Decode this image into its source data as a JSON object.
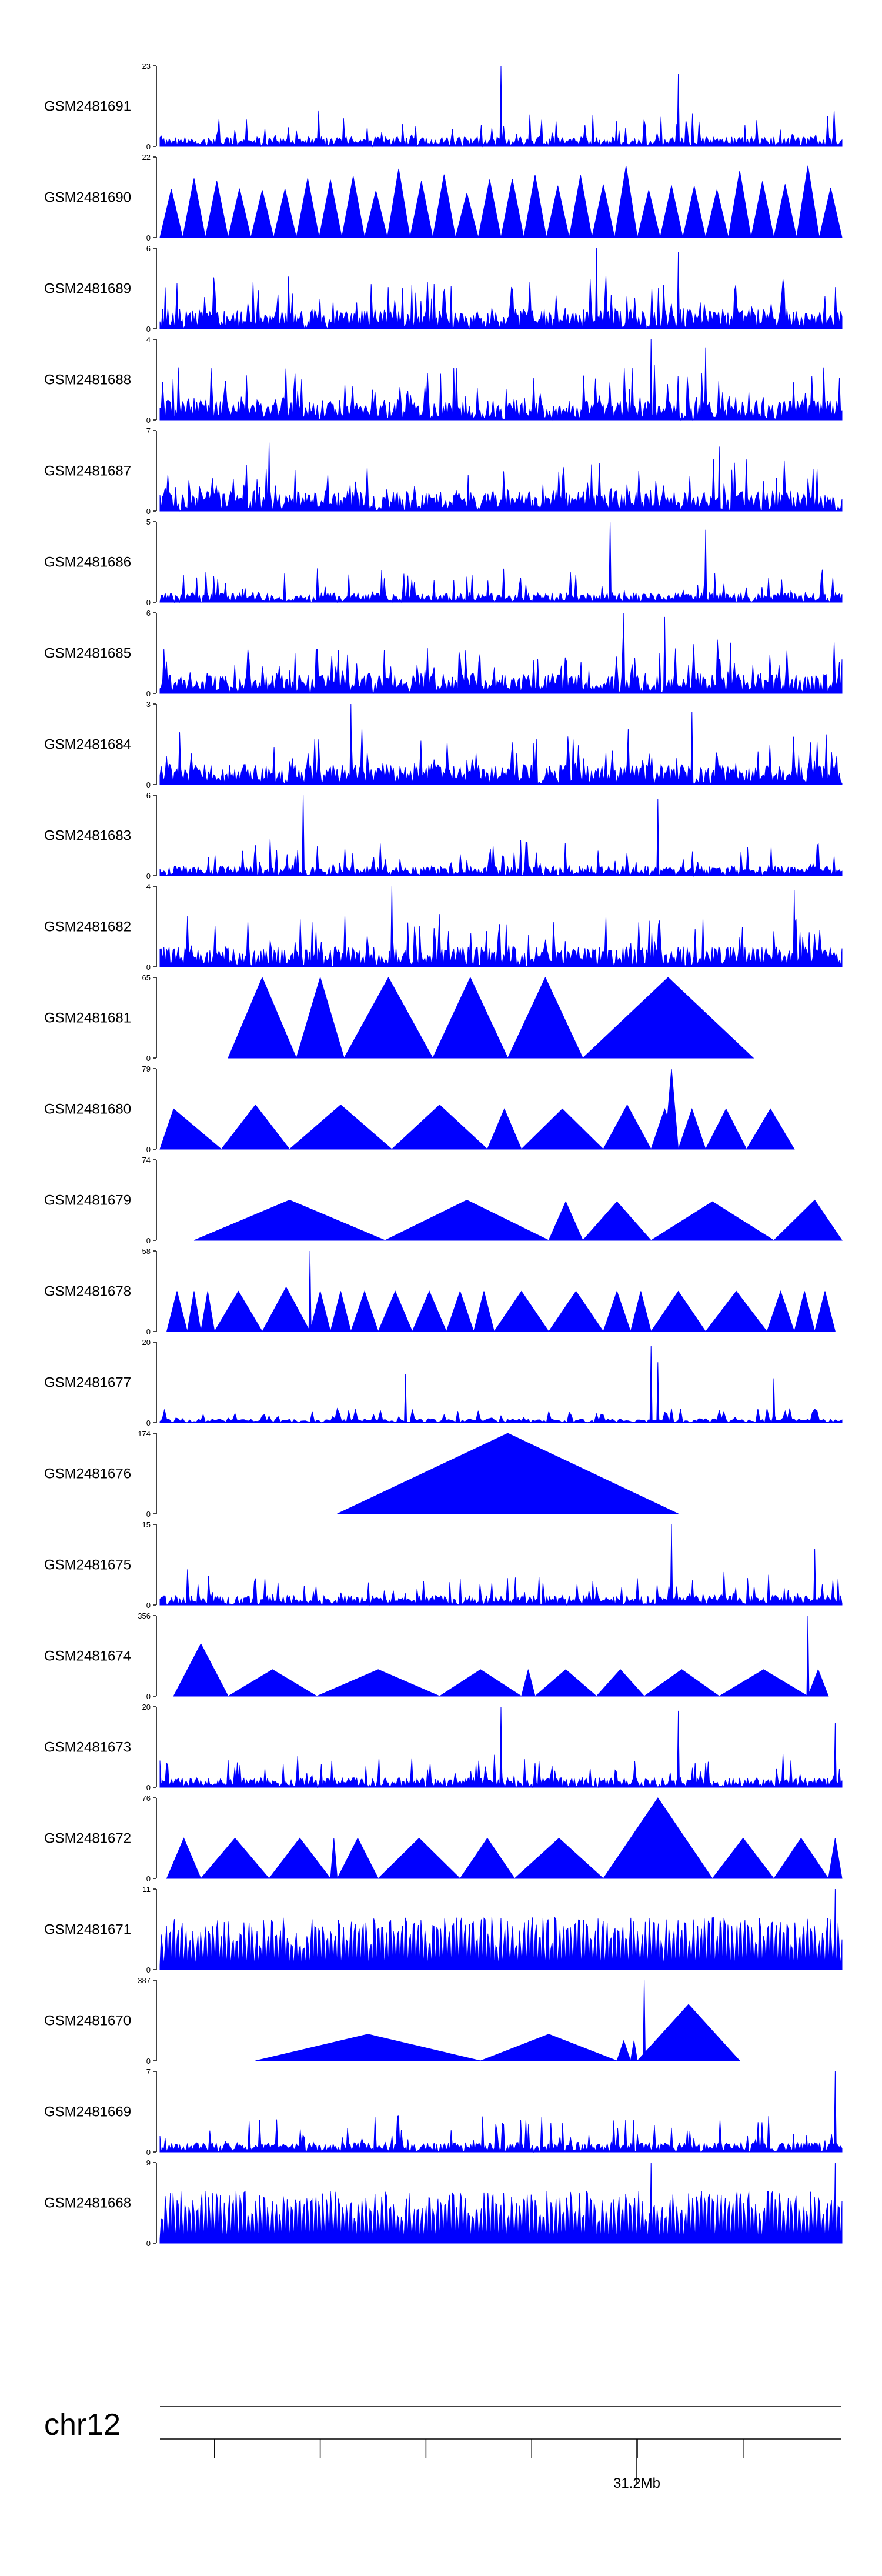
{
  "chart_data": {
    "type": "area",
    "title": "",
    "color": "#0000ff",
    "tracks": [
      {
        "name": "GSM2481691",
        "ymax": "23",
        "ymin": "0",
        "max": 23,
        "pattern": "spiky",
        "seed": 11,
        "peaks": [
          [
            0.5,
            1.0
          ],
          [
            0.76,
            0.9
          ]
        ]
      },
      {
        "name": "GSM2481690",
        "ymax": "22",
        "ymin": "0",
        "max": 22,
        "pattern": "sparse",
        "seed": 12,
        "peaks": []
      },
      {
        "name": "GSM2481689",
        "ymax": "6",
        "ymin": "0",
        "max": 6,
        "pattern": "dense",
        "seed": 13,
        "peaks": [
          [
            0.64,
            1.0
          ],
          [
            0.76,
            0.95
          ]
        ]
      },
      {
        "name": "GSM2481688",
        "ymax": "4",
        "ymin": "0",
        "max": 4,
        "pattern": "dense",
        "seed": 14,
        "peaks": [
          [
            0.72,
            1.0
          ],
          [
            0.8,
            0.9
          ]
        ]
      },
      {
        "name": "GSM2481687",
        "ymax": "7",
        "ymin": "0",
        "max": 7,
        "pattern": "dense",
        "seed": 15,
        "peaks": [
          [
            0.16,
            0.85
          ],
          [
            0.82,
            0.8
          ]
        ]
      },
      {
        "name": "GSM2481686",
        "ymax": "5",
        "ymin": "0",
        "max": 5,
        "pattern": "spiky",
        "seed": 16,
        "peaks": [
          [
            0.66,
            1.0
          ],
          [
            0.8,
            0.9
          ]
        ]
      },
      {
        "name": "GSM2481685",
        "ymax": "6",
        "ymin": "0",
        "max": 6,
        "pattern": "dense",
        "seed": 17,
        "peaks": [
          [
            0.68,
            1.0
          ],
          [
            0.74,
            0.95
          ]
        ]
      },
      {
        "name": "GSM2481684",
        "ymax": "3",
        "ymin": "0",
        "max": 3,
        "pattern": "dense",
        "seed": 18,
        "peaks": [
          [
            0.28,
            1.0
          ],
          [
            0.78,
            0.9
          ]
        ]
      },
      {
        "name": "GSM2481683",
        "ymax": "6",
        "ymin": "0",
        "max": 6,
        "pattern": "spiky",
        "seed": 19,
        "peaks": [
          [
            0.21,
            1.0
          ],
          [
            0.73,
            0.95
          ]
        ]
      },
      {
        "name": "GSM2481682",
        "ymax": "4",
        "ymin": "0",
        "max": 4,
        "pattern": "dense",
        "seed": 20,
        "peaks": [
          [
            0.34,
            1.0
          ],
          [
            0.93,
            0.95
          ]
        ]
      },
      {
        "name": "GSM2481681",
        "ymax": "65",
        "ymin": "0",
        "max": 65,
        "pattern": "blocks",
        "seed": 21,
        "blocks": [
          [
            0.1,
            0.2,
            1.0
          ],
          [
            0.2,
            0.27,
            1.0
          ],
          [
            0.27,
            0.4,
            1.0
          ],
          [
            0.4,
            0.51,
            1.0
          ],
          [
            0.51,
            0.62,
            1.0
          ],
          [
            0.62,
            0.87,
            1.0
          ]
        ]
      },
      {
        "name": "GSM2481680",
        "ymax": "79",
        "ymin": "0",
        "max": 79,
        "pattern": "blocks",
        "seed": 22,
        "blocks": [
          [
            -0.05,
            0.09,
            0.5
          ],
          [
            0.09,
            0.19,
            0.55
          ],
          [
            0.19,
            0.34,
            0.55
          ],
          [
            0.34,
            0.48,
            0.55
          ],
          [
            0.48,
            0.53,
            0.5
          ],
          [
            0.53,
            0.65,
            0.5
          ],
          [
            0.65,
            0.72,
            0.55
          ],
          [
            0.72,
            0.76,
            0.5
          ],
          [
            0.74,
            0.76,
            1.0
          ],
          [
            0.76,
            0.8,
            0.5
          ],
          [
            0.8,
            0.86,
            0.5
          ],
          [
            0.86,
            0.93,
            0.5
          ]
        ]
      },
      {
        "name": "GSM2481679",
        "ymax": "74",
        "ymin": "0",
        "max": 74,
        "pattern": "blocks",
        "seed": 23,
        "blocks": [
          [
            0.05,
            0.33,
            0.5
          ],
          [
            0.33,
            0.57,
            0.5
          ],
          [
            0.57,
            0.62,
            0.48
          ],
          [
            0.62,
            0.72,
            0.48
          ],
          [
            0.72,
            0.9,
            0.48
          ],
          [
            0.9,
            1.02,
            0.5
          ]
        ]
      },
      {
        "name": "GSM2481678",
        "ymax": "58",
        "ymin": "0",
        "max": 58,
        "pattern": "blocks",
        "seed": 24,
        "blocks": [
          [
            0.01,
            0.04,
            0.5
          ],
          [
            0.04,
            0.06,
            0.5
          ],
          [
            0.06,
            0.08,
            0.5
          ],
          [
            0.08,
            0.15,
            0.5
          ],
          [
            0.15,
            0.22,
            0.55
          ],
          [
            0.22,
            0.25,
            0.5
          ],
          [
            0.25,
            0.28,
            0.5
          ],
          [
            0.28,
            0.32,
            0.5
          ],
          [
            0.32,
            0.37,
            0.5
          ],
          [
            0.37,
            0.42,
            0.5
          ],
          [
            0.42,
            0.46,
            0.5
          ],
          [
            0.46,
            0.49,
            0.5
          ],
          [
            0.49,
            0.57,
            0.5
          ],
          [
            0.57,
            0.65,
            0.5
          ],
          [
            0.65,
            0.69,
            0.5
          ],
          [
            0.69,
            0.72,
            0.5
          ],
          [
            0.72,
            0.8,
            0.5
          ],
          [
            0.8,
            0.89,
            0.5
          ],
          [
            0.89,
            0.93,
            0.5
          ],
          [
            0.93,
            0.96,
            0.5
          ],
          [
            0.96,
            0.99,
            0.5
          ]
        ],
        "peaks": [
          [
            0.22,
            1.0
          ]
        ]
      },
      {
        "name": "GSM2481677",
        "ymax": "20",
        "ymin": "0",
        "max": 20,
        "pattern": "sparse-spiky",
        "seed": 25,
        "peaks": [
          [
            0.36,
            0.6
          ],
          [
            0.72,
            0.95
          ],
          [
            0.73,
            0.75
          ],
          [
            0.9,
            0.55
          ]
        ]
      },
      {
        "name": "GSM2481676",
        "ymax": "174",
        "ymin": "0",
        "max": 174,
        "pattern": "blocks",
        "seed": 26,
        "blocks": [
          [
            0.26,
            0.76,
            1.0
          ]
        ]
      },
      {
        "name": "GSM2481675",
        "ymax": "15",
        "ymin": "0",
        "max": 15,
        "pattern": "spiky",
        "seed": 27,
        "peaks": [
          [
            0.75,
            1.0
          ],
          [
            0.96,
            0.7
          ]
        ]
      },
      {
        "name": "GSM2481674",
        "ymax": "356",
        "ymin": "0",
        "max": 356,
        "pattern": "blocks",
        "seed": 28,
        "blocks": [
          [
            0.02,
            0.1,
            0.65
          ],
          [
            0.1,
            0.23,
            0.33
          ],
          [
            0.23,
            0.41,
            0.33
          ],
          [
            0.41,
            0.53,
            0.33
          ],
          [
            0.53,
            0.55,
            0.33
          ],
          [
            0.55,
            0.64,
            0.33
          ],
          [
            0.64,
            0.71,
            0.33
          ],
          [
            0.71,
            0.82,
            0.33
          ],
          [
            0.82,
            0.95,
            0.33
          ],
          [
            0.95,
            0.98,
            0.33
          ]
        ],
        "peaks": [
          [
            0.95,
            1.0
          ]
        ]
      },
      {
        "name": "GSM2481673",
        "ymax": "20",
        "ymin": "0",
        "max": 20,
        "pattern": "spiky",
        "seed": 29,
        "peaks": [
          [
            0.5,
            1.0
          ],
          [
            0.76,
            0.95
          ],
          [
            0.99,
            0.8
          ]
        ]
      },
      {
        "name": "GSM2481672",
        "ymax": "76",
        "ymin": "0",
        "max": 76,
        "pattern": "blocks",
        "seed": 30,
        "blocks": [
          [
            0.01,
            0.06,
            0.5
          ],
          [
            0.06,
            0.16,
            0.5
          ],
          [
            0.16,
            0.25,
            0.5
          ],
          [
            0.25,
            0.26,
            0.5
          ],
          [
            0.26,
            0.32,
            0.5
          ],
          [
            0.32,
            0.44,
            0.5
          ],
          [
            0.44,
            0.52,
            0.5
          ],
          [
            0.52,
            0.65,
            0.5
          ],
          [
            0.65,
            0.81,
            1.0
          ],
          [
            0.81,
            0.9,
            0.5
          ],
          [
            0.9,
            0.98,
            0.5
          ],
          [
            0.98,
            1.0,
            0.5
          ]
        ]
      },
      {
        "name": "GSM2481671",
        "ymax": "11",
        "ymin": "0",
        "max": 11,
        "pattern": "dense-comb",
        "seed": 31,
        "peaks": [
          [
            0.99,
            1.0
          ]
        ]
      },
      {
        "name": "GSM2481670",
        "ymax": "387",
        "ymin": "0",
        "max": 387,
        "pattern": "blocks",
        "seed": 32,
        "blocks": [
          [
            0.14,
            0.47,
            0.33
          ],
          [
            0.47,
            0.67,
            0.33
          ],
          [
            0.67,
            0.69,
            0.25
          ],
          [
            0.69,
            0.7,
            0.25
          ],
          [
            0.7,
            0.85,
            0.7
          ]
        ],
        "peaks": [
          [
            0.71,
            1.0
          ]
        ]
      },
      {
        "name": "GSM2481669",
        "ymax": "7",
        "ymin": "0",
        "max": 7,
        "pattern": "spiky",
        "seed": 33,
        "peaks": [
          [
            0.99,
            1.0
          ]
        ]
      },
      {
        "name": "GSM2481668",
        "ymax": "9",
        "ymin": "0",
        "max": 9,
        "pattern": "dense-comb",
        "seed": 34,
        "peaks": [
          [
            0.72,
            1.0
          ],
          [
            0.99,
            1.0
          ]
        ]
      }
    ],
    "chromosome": "chr12",
    "position_label": "31.2Mb",
    "xlabel": "",
    "ylabel": ""
  }
}
